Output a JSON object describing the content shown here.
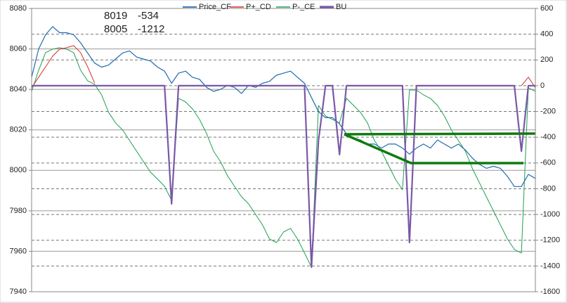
{
  "chart_data": {
    "type": "line",
    "ylim": [
      7940,
      8080
    ],
    "yticks": [
      7940,
      7960,
      7980,
      8000,
      8020,
      8040,
      8060,
      8080
    ],
    "y2lim": [
      -1600,
      600
    ],
    "y2ticks": [
      -1600,
      -1400,
      -1200,
      -1000,
      -800,
      -600,
      -400,
      -200,
      0,
      200,
      400,
      600
    ],
    "grid": true,
    "annotations": [
      [
        "8019",
        "-534"
      ],
      [
        "8005",
        "-1212"
      ]
    ],
    "series": [
      {
        "name": "Price_CF",
        "color": "#1f6bb0",
        "width": 1.2,
        "values": [
          8046,
          8060,
          8067,
          8071,
          8068,
          8068,
          8067,
          8063,
          8058,
          8053,
          8051,
          8052,
          8055,
          8058,
          8059,
          8056,
          8055,
          8054,
          8051,
          8049,
          8043,
          8048,
          8049,
          8046,
          8045,
          8041,
          8039,
          8040,
          8042,
          8041,
          8038,
          8042,
          8041,
          8043,
          8044,
          8047,
          8048,
          8049,
          8046,
          8043,
          8036,
          8029,
          8026,
          8026,
          8023,
          8018,
          8016,
          8015,
          8013,
          8013,
          8011,
          8013,
          8013,
          8011,
          8008,
          8011,
          8013,
          8011,
          8015,
          8013,
          8011,
          8013,
          8010,
          8006,
          8003,
          8001,
          8002,
          8001,
          7997,
          7992,
          7992,
          7998,
          7996
        ]
      },
      {
        "name": "P+_CD",
        "color": "#d0312d",
        "axis": "y2",
        "width": 1,
        "values": [
          -16,
          66,
          147,
          229,
          284,
          295,
          311,
          257,
          147,
          22,
          null,
          null,
          null,
          null,
          null,
          null,
          null,
          null,
          null,
          null,
          null,
          null,
          null,
          null,
          null,
          null,
          null,
          null,
          null,
          null,
          null,
          null,
          null,
          null,
          null,
          null,
          null,
          null,
          null,
          null,
          null,
          null,
          null,
          null,
          null,
          null,
          null,
          null,
          null,
          null,
          null,
          null,
          null,
          null,
          null,
          null,
          null,
          null,
          null,
          null,
          null,
          null,
          null,
          null,
          null,
          null,
          null,
          null,
          null,
          null,
          0,
          66,
          -16
        ]
      },
      {
        "name": "P-_CE",
        "color": "#1fa050",
        "axis": "y2",
        "width": 1,
        "values": [
          -44,
          120,
          257,
          284,
          295,
          284,
          257,
          120,
          38,
          11,
          -71,
          -207,
          -289,
          -344,
          -426,
          -508,
          -590,
          -672,
          -726,
          -781,
          -890,
          -98,
          -126,
          -180,
          -262,
          -371,
          -508,
          -590,
          -699,
          -781,
          -863,
          -917,
          -999,
          -1081,
          -1190,
          -1218,
          -1136,
          -1108,
          -1190,
          -1299,
          -1409,
          -153,
          -235,
          -262,
          -289,
          -98,
          -153,
          -207,
          -289,
          -426,
          -508,
          -617,
          -726,
          -808,
          -33,
          -33,
          -71,
          -98,
          -153,
          -235,
          -344,
          -426,
          -508,
          -644,
          -753,
          -863,
          -972,
          -1081,
          -1190,
          -1272,
          -1299,
          -16,
          -44
        ]
      },
      {
        "name": "BU",
        "color": "#7a58a8",
        "axis": "y2",
        "width": 2.2,
        "values": [
          0,
          0,
          0,
          0,
          0,
          0,
          0,
          0,
          0,
          0,
          0,
          0,
          0,
          0,
          0,
          0,
          0,
          0,
          0,
          0,
          -917,
          0,
          0,
          0,
          0,
          0,
          0,
          0,
          0,
          0,
          0,
          0,
          0,
          0,
          0,
          0,
          0,
          0,
          0,
          0,
          -1409,
          -426,
          0,
          0,
          -535,
          0,
          0,
          0,
          0,
          0,
          0,
          0,
          0,
          0,
          -1218,
          0,
          0,
          0,
          0,
          0,
          0,
          0,
          0,
          0,
          0,
          0,
          0,
          0,
          0,
          0,
          -508,
          0,
          0
        ]
      }
    ]
  }
}
